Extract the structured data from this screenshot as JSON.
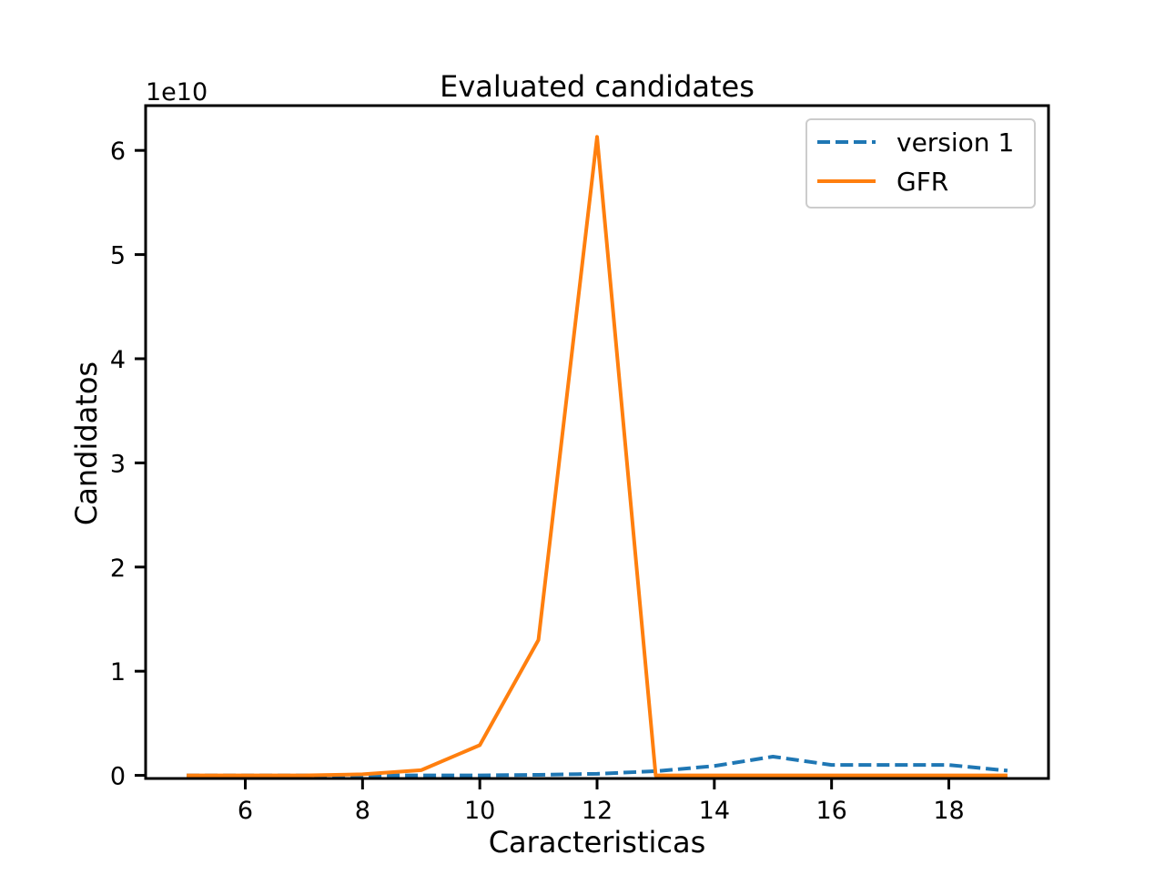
{
  "chart_data": {
    "type": "line",
    "title": "Evaluated candidates",
    "xlabel": "Caracteristicas",
    "ylabel": "Candidatos",
    "y_offset_label": "1e10",
    "y_scale_factor": 10000000000,
    "xlim": [
      4.3,
      19.7
    ],
    "ylim": [
      -300000000,
      64300000000
    ],
    "x_ticks": [
      6,
      8,
      10,
      12,
      14,
      16,
      18
    ],
    "y_ticks": [
      0,
      10000000000,
      20000000000,
      30000000000,
      40000000000,
      50000000000,
      60000000000
    ],
    "y_tick_labels": [
      "0",
      "1",
      "2",
      "3",
      "4",
      "5",
      "6"
    ],
    "x_tick_labels": [
      "6",
      "8",
      "10",
      "12",
      "14",
      "16",
      "18"
    ],
    "grid": false,
    "legend_position": "top-right",
    "series": [
      {
        "name": "version 1",
        "color": "#1f77b4",
        "style": "dashed",
        "x": [
          5,
          6,
          7,
          8,
          9,
          10,
          11,
          12,
          13,
          14,
          15,
          16,
          17,
          18,
          19
        ],
        "y": [
          0,
          0,
          0,
          0,
          0,
          0,
          50000000,
          150000000,
          400000000,
          900000000,
          1800000000,
          1000000000,
          1000000000,
          1000000000,
          450000000
        ]
      },
      {
        "name": "GFR",
        "color": "#ff7f0e",
        "style": "solid",
        "x": [
          5,
          6,
          7,
          8,
          9,
          10,
          11,
          12,
          13,
          14,
          15,
          16,
          17,
          18,
          19
        ],
        "y": [
          0,
          0,
          0,
          100000000,
          500000000,
          2900000000,
          13000000000,
          61300000000,
          0,
          0,
          0,
          0,
          0,
          0,
          0
        ]
      }
    ]
  }
}
